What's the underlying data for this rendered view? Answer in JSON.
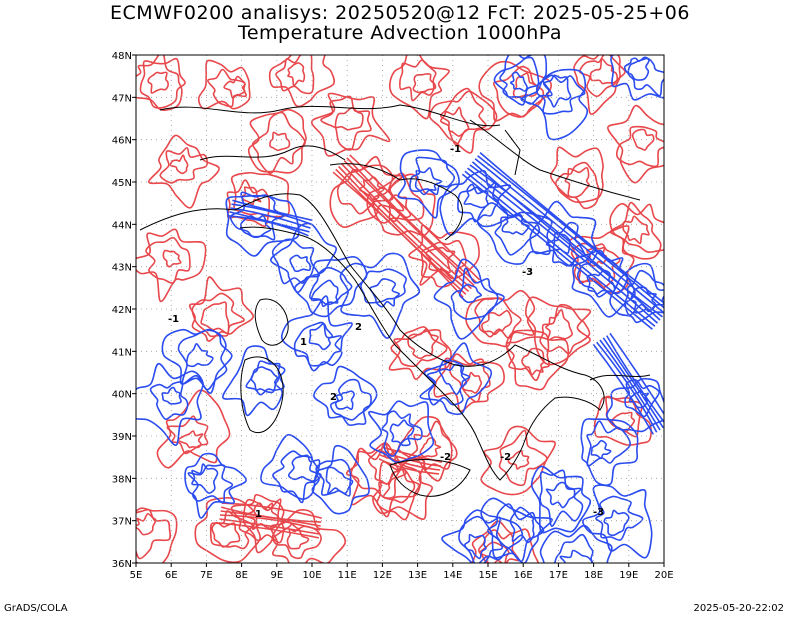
{
  "header": {
    "title_line1": "ECMWF0200 analisys: 20250520@12 FcT: 2025-05-25+06",
    "title_line2": "Temperature Advection 1000hPa"
  },
  "map": {
    "lon_range": [
      5,
      20
    ],
    "lat_range": [
      36,
      48
    ],
    "x_tick_labels": [
      "5E",
      "6E",
      "7E",
      "8E",
      "9E",
      "10E",
      "11E",
      "12E",
      "13E",
      "14E",
      "15E",
      "16E",
      "17E",
      "18E",
      "19E",
      "20E"
    ],
    "y_tick_labels": [
      "36N",
      "37N",
      "38N",
      "39N",
      "40N",
      "41N",
      "42N",
      "43N",
      "44N",
      "45N",
      "46N",
      "47N",
      "48N"
    ],
    "grid": "dotted",
    "contour_colors": {
      "positive": "#e8474b",
      "negative": "#2b4cf0"
    },
    "contour_labels": [
      "1",
      "-1",
      "2",
      "-2",
      "-3",
      "1",
      "-1",
      "-2",
      "2",
      "-3"
    ]
  },
  "footer": {
    "left": "GrADS/COLA",
    "right": "2025-05-20-22:02"
  }
}
